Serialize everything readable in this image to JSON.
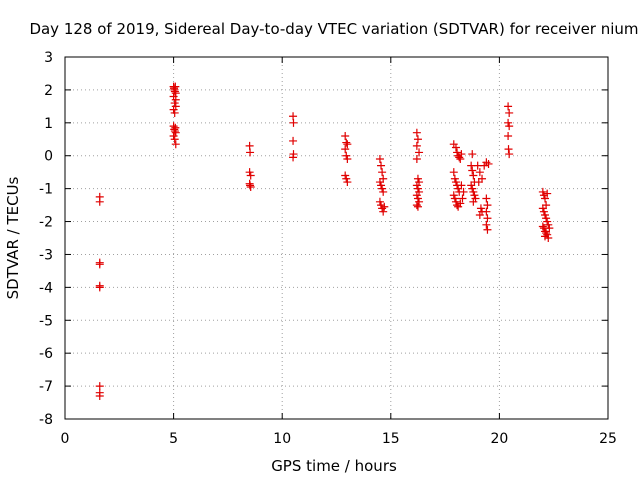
{
  "chart_data": {
    "type": "scatter",
    "title": "Day 128 of 2019, Sidereal Day-to-day VTEC variation (SDTVAR) for receiver nium",
    "xlabel": "GPS time / hours",
    "ylabel": "SDTVAR / TECUs",
    "xlim": [
      0,
      25
    ],
    "ylim": [
      -8,
      3
    ],
    "xticks": [
      "0",
      "5",
      "10",
      "15",
      "20",
      "25"
    ],
    "yticks": [
      "3",
      "2",
      "1",
      "0",
      "-1",
      "-2",
      "-3",
      "-4",
      "-5",
      "-6",
      "-7",
      "-8"
    ],
    "grid": true,
    "marker": "+",
    "series": [
      {
        "name": "SDTVAR",
        "color": "#e00000",
        "points": [
          [
            1.6,
            -1.25
          ],
          [
            1.6,
            -1.4
          ],
          [
            1.6,
            -3.25
          ],
          [
            1.6,
            -3.3
          ],
          [
            1.6,
            -3.95
          ],
          [
            1.6,
            -4.0
          ],
          [
            1.6,
            -7.0
          ],
          [
            1.6,
            -7.2
          ],
          [
            1.6,
            -7.3
          ],
          [
            5.0,
            2.1
          ],
          [
            5.02,
            2.05
          ],
          [
            5.04,
            2.0
          ],
          [
            5.06,
            1.95
          ],
          [
            5.08,
            2.1
          ],
          [
            5.1,
            1.9
          ],
          [
            5.0,
            1.8
          ],
          [
            5.05,
            1.6
          ],
          [
            5.1,
            1.5
          ],
          [
            5.0,
            1.4
          ],
          [
            5.05,
            1.3
          ],
          [
            5.1,
            1.7
          ],
          [
            5.0,
            0.9
          ],
          [
            5.03,
            0.8
          ],
          [
            5.06,
            0.75
          ],
          [
            5.1,
            0.7
          ],
          [
            5.0,
            0.6
          ],
          [
            5.05,
            0.5
          ],
          [
            5.1,
            0.35
          ],
          [
            5.08,
            0.85
          ],
          [
            8.5,
            0.3
          ],
          [
            8.52,
            0.1
          ],
          [
            8.5,
            -0.5
          ],
          [
            8.55,
            -0.6
          ],
          [
            8.5,
            -0.85
          ],
          [
            8.52,
            -0.9
          ],
          [
            8.55,
            -0.95
          ],
          [
            10.5,
            1.2
          ],
          [
            10.52,
            1.0
          ],
          [
            10.5,
            0.45
          ],
          [
            10.52,
            0.05
          ],
          [
            10.5,
            -0.05
          ],
          [
            12.9,
            0.6
          ],
          [
            12.95,
            0.4
          ],
          [
            13.0,
            0.35
          ],
          [
            12.9,
            0.2
          ],
          [
            12.95,
            0.0
          ],
          [
            13.0,
            -0.1
          ],
          [
            12.9,
            -0.6
          ],
          [
            12.95,
            -0.7
          ],
          [
            13.0,
            -0.8
          ],
          [
            14.5,
            -0.1
          ],
          [
            14.55,
            -0.3
          ],
          [
            14.6,
            -0.5
          ],
          [
            14.65,
            -0.7
          ],
          [
            14.5,
            -0.8
          ],
          [
            14.55,
            -0.9
          ],
          [
            14.6,
            -1.0
          ],
          [
            14.65,
            -1.1
          ],
          [
            14.5,
            -1.4
          ],
          [
            14.55,
            -1.5
          ],
          [
            14.6,
            -1.6
          ],
          [
            14.65,
            -1.7
          ],
          [
            14.7,
            -1.55
          ],
          [
            16.2,
            0.7
          ],
          [
            16.25,
            0.5
          ],
          [
            16.2,
            0.3
          ],
          [
            16.3,
            0.1
          ],
          [
            16.2,
            -0.1
          ],
          [
            16.25,
            -0.7
          ],
          [
            16.3,
            -0.8
          ],
          [
            16.2,
            -0.9
          ],
          [
            16.25,
            -1.0
          ],
          [
            16.3,
            -1.1
          ],
          [
            16.2,
            -1.2
          ],
          [
            16.25,
            -1.3
          ],
          [
            16.3,
            -1.4
          ],
          [
            16.2,
            -1.5
          ],
          [
            16.25,
            -1.55
          ],
          [
            17.9,
            0.35
          ],
          [
            18.0,
            0.25
          ],
          [
            18.05,
            0.1
          ],
          [
            18.1,
            0.0
          ],
          [
            18.15,
            -0.05
          ],
          [
            18.2,
            -0.1
          ],
          [
            18.25,
            0.05
          ],
          [
            17.9,
            -0.5
          ],
          [
            17.95,
            -0.7
          ],
          [
            18.0,
            -0.8
          ],
          [
            18.05,
            -0.9
          ],
          [
            18.1,
            -1.0
          ],
          [
            18.15,
            -1.1
          ],
          [
            17.9,
            -1.2
          ],
          [
            17.95,
            -1.3
          ],
          [
            18.0,
            -1.4
          ],
          [
            18.05,
            -1.5
          ],
          [
            18.1,
            -1.55
          ],
          [
            18.2,
            -1.45
          ],
          [
            18.3,
            -1.3
          ],
          [
            18.35,
            -1.1
          ],
          [
            18.25,
            -0.9
          ],
          [
            18.7,
            -0.3
          ],
          [
            18.75,
            -0.45
          ],
          [
            18.8,
            -0.6
          ],
          [
            18.85,
            -0.8
          ],
          [
            18.7,
            -0.9
          ],
          [
            18.75,
            -1.0
          ],
          [
            18.8,
            -1.1
          ],
          [
            18.85,
            -1.2
          ],
          [
            18.9,
            -1.3
          ],
          [
            18.8,
            -1.4
          ],
          [
            18.75,
            0.05
          ],
          [
            19.0,
            -0.3
          ],
          [
            19.1,
            -0.5
          ],
          [
            19.2,
            -0.7
          ],
          [
            19.3,
            -0.3
          ],
          [
            19.4,
            -0.2
          ],
          [
            19.5,
            -0.25
          ],
          [
            19.05,
            -0.8
          ],
          [
            19.15,
            -1.6
          ],
          [
            19.2,
            -1.7
          ],
          [
            19.1,
            -1.8
          ],
          [
            19.4,
            -1.3
          ],
          [
            19.45,
            -1.5
          ],
          [
            19.4,
            -1.7
          ],
          [
            19.45,
            -1.9
          ],
          [
            19.4,
            -2.1
          ],
          [
            19.45,
            -2.25
          ],
          [
            20.4,
            1.5
          ],
          [
            20.45,
            1.3
          ],
          [
            20.4,
            1.0
          ],
          [
            20.45,
            0.9
          ],
          [
            20.4,
            0.6
          ],
          [
            20.42,
            0.2
          ],
          [
            20.45,
            0.05
          ],
          [
            22.0,
            -1.1
          ],
          [
            22.05,
            -1.2
          ],
          [
            22.1,
            -1.3
          ],
          [
            22.15,
            -1.5
          ],
          [
            22.0,
            -1.6
          ],
          [
            22.05,
            -1.7
          ],
          [
            22.1,
            -1.8
          ],
          [
            22.15,
            -1.9
          ],
          [
            22.2,
            -2.0
          ],
          [
            22.25,
            -2.1
          ],
          [
            22.0,
            -2.15
          ],
          [
            22.05,
            -2.2
          ],
          [
            22.1,
            -2.3
          ],
          [
            22.15,
            -2.35
          ],
          [
            22.2,
            -2.4
          ],
          [
            22.25,
            -2.5
          ],
          [
            22.1,
            -2.45
          ],
          [
            22.3,
            -2.2
          ],
          [
            22.2,
            -1.15
          ]
        ]
      }
    ]
  }
}
